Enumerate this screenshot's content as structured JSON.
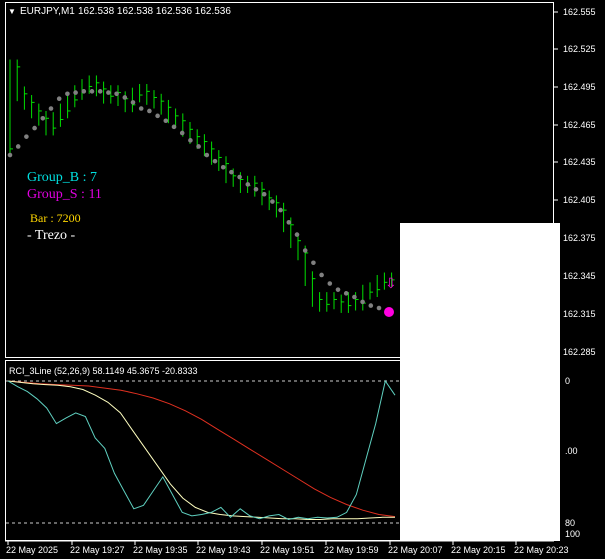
{
  "header": {
    "symbol_tf": "EURJPY,M1",
    "ohlc": "162.538 162.538 162.536 162.536"
  },
  "overlay": {
    "group_b": "Group_B : 7",
    "group_s": "Group_S : 11",
    "bar": "Bar : 7200",
    "trezo": "- Trezo -"
  },
  "indicator": {
    "label": "RCI_3Line (52,26,9) 58.1149 45.3675 -20.8333",
    "ticks": [
      "0",
      ".00",
      "80",
      "100"
    ]
  },
  "price_axis": {
    "labels": [
      "162.555",
      "162.525",
      "162.495",
      "162.465",
      "162.435",
      "162.405",
      "162.375",
      "162.345",
      "162.315",
      "162.285"
    ]
  },
  "time_axis": {
    "labels": [
      "22 May 2025",
      "22 May 19:27",
      "22 May 19:35",
      "22 May 19:43",
      "22 May 19:51",
      "22 May 19:59",
      "22 May 20:07",
      "22 May 20:15",
      "22 May 20:23"
    ]
  },
  "colors": {
    "background": "#000000",
    "frame": "#ffffff",
    "bar": "#00e000",
    "dots": "#808080",
    "rci_short": "#5fd0c0",
    "rci_mid": "#ffffc0",
    "rci_long": "#e03020",
    "group_b": "#00e0e0",
    "group_s": "#e000e0",
    "bar_text": "#ffd700",
    "signal": "#ff00e0"
  },
  "chart_data": {
    "type": "line",
    "price_series": [
      162.445,
      162.512,
      162.49,
      162.483,
      162.476,
      162.47,
      162.462,
      162.469,
      162.476,
      162.485,
      162.491,
      162.496,
      162.499,
      162.494,
      162.488,
      162.491,
      162.486,
      162.481,
      162.489,
      162.492,
      162.487,
      162.484,
      162.479,
      162.472,
      162.468,
      162.461,
      162.455,
      162.451,
      162.445,
      162.438,
      162.433,
      162.423,
      162.42,
      162.415,
      162.417,
      162.412,
      162.405,
      162.401,
      162.395,
      162.383,
      162.37,
      162.36,
      162.339,
      162.322,
      162.318,
      162.322,
      162.32,
      162.317,
      162.322,
      162.319,
      162.328,
      162.33,
      162.336,
      162.338
    ],
    "sar_dots": [
      162.44,
      162.447,
      162.455,
      162.462,
      162.47,
      162.478,
      162.486,
      162.49,
      162.491,
      162.492,
      162.492,
      162.492,
      162.491,
      162.49,
      162.487,
      162.483,
      162.478,
      162.476,
      162.472,
      162.468,
      162.463,
      162.458,
      162.452,
      162.447,
      162.44,
      162.435,
      162.43,
      162.426,
      162.422,
      162.416,
      162.412,
      162.408,
      162.402,
      162.395,
      162.385,
      162.375,
      162.362,
      162.352,
      162.342,
      162.335,
      162.33,
      162.327,
      162.324,
      162.32,
      162.317,
      162.315
    ],
    "rci": {
      "short": [
        100,
        92,
        85,
        75,
        62,
        40,
        48,
        55,
        50,
        20,
        5,
        -30,
        -55,
        -80,
        -75,
        -55,
        -35,
        -60,
        -85,
        -90,
        -88,
        -85,
        -78,
        -92,
        -80,
        -90,
        -94,
        -90,
        -88,
        -95,
        -92,
        -94,
        -92,
        -93,
        -92,
        -85,
        -60,
        -10,
        40,
        100,
        80
      ],
      "mid": [
        100,
        98,
        96,
        95,
        94,
        92,
        88,
        80,
        70,
        55,
        30,
        5,
        -20,
        -45,
        -65,
        -78,
        -85,
        -88,
        -90,
        -91,
        -92,
        -93,
        -94,
        -94,
        -95,
        -95,
        -94,
        -94,
        -94,
        -93,
        -92,
        -92
      ],
      "long": [
        100,
        98,
        96,
        95,
        94,
        93,
        90,
        87,
        82,
        76,
        68,
        58,
        46,
        32,
        18,
        4,
        -10,
        -24,
        -38,
        -52,
        -64,
        -74,
        -82,
        -88,
        -91
      ]
    },
    "y_range_price": [
      162.275,
      162.565
    ],
    "y_range_rci": [
      -100,
      100
    ]
  }
}
